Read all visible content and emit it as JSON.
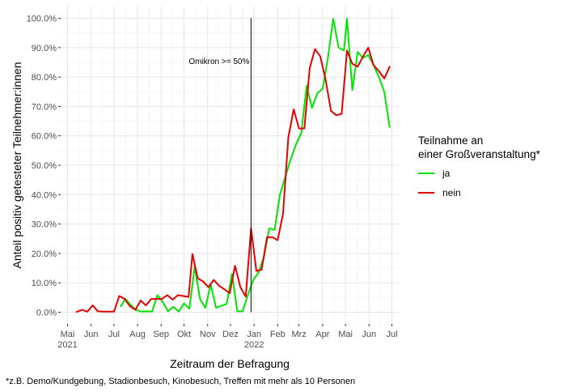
{
  "chart_data": {
    "type": "line",
    "title": "",
    "xlabel": "Zeitraum der Befragung",
    "ylabel": "Anteil positiv getesteter Teilnehmer:innen",
    "caption": "*z.B. Demo/Kundgebung, Stadionbesuch, Kinobesuch, Treffen mit mehr als 10 Personen",
    "x_tick_labels": [
      "Mai",
      "Jun",
      "Jul",
      "Aug",
      "Sep",
      "Okt",
      "Nov",
      "Dez",
      "Jan",
      "Feb",
      "Mrz",
      "Apr",
      "Mai",
      "Jun",
      "Jul"
    ],
    "x_tick_dates": [
      "2021-05-01",
      "2021-06-01",
      "2021-07-01",
      "2021-08-01",
      "2021-09-01",
      "2021-10-01",
      "2021-11-01",
      "2021-12-01",
      "2022-01-01",
      "2022-02-01",
      "2022-03-01",
      "2022-04-01",
      "2022-05-01",
      "2022-06-01",
      "2022-07-01"
    ],
    "x_year_labels": [
      {
        "date": "2021-05-01",
        "label": "2021"
      },
      {
        "date": "2022-01-01",
        "label": "2022"
      }
    ],
    "xlim": [
      "2021-04-22",
      "2022-07-10"
    ],
    "y_tick_labels": [
      "0.0%",
      "10.0%",
      "20.0%",
      "30.0%",
      "40.0%",
      "50.0%",
      "60.0%",
      "70.0%",
      "80.0%",
      "90.0%",
      "100.0%"
    ],
    "y_ticks": [
      0,
      10,
      20,
      30,
      40,
      50,
      60,
      70,
      80,
      90,
      100
    ],
    "ylim": [
      -4,
      104
    ],
    "y_unit": "%",
    "grid": true,
    "legend": {
      "title_line1": "Teilnahme an",
      "title_line2": "einer Großveranstaltung*",
      "placement": "right"
    },
    "annotation": {
      "date": "2021-12-28",
      "text": "Omikron >= 50%",
      "y": 84.5
    },
    "series": [
      {
        "name": "ja",
        "color": "#00e600",
        "points": [
          [
            "2021-07-10",
            2.0
          ],
          [
            "2021-07-16",
            4.5
          ],
          [
            "2021-07-23",
            2.5
          ],
          [
            "2021-07-30",
            0.8
          ],
          [
            "2021-08-06",
            0.2
          ],
          [
            "2021-08-13",
            0.3
          ],
          [
            "2021-08-20",
            0.2
          ],
          [
            "2021-08-27",
            5.8
          ],
          [
            "2021-09-03",
            3.5
          ],
          [
            "2021-09-10",
            0.3
          ],
          [
            "2021-09-17",
            1.8
          ],
          [
            "2021-09-24",
            0.2
          ],
          [
            "2021-10-01",
            3.0
          ],
          [
            "2021-10-08",
            1.2
          ],
          [
            "2021-10-15",
            15.5
          ],
          [
            "2021-10-22",
            4.5
          ],
          [
            "2021-10-29",
            1.5
          ],
          [
            "2021-11-05",
            9.5
          ],
          [
            "2021-11-12",
            1.5
          ],
          [
            "2021-11-19",
            2.2
          ],
          [
            "2021-11-26",
            2.8
          ],
          [
            "2021-12-03",
            13.0
          ],
          [
            "2021-12-10",
            0.3
          ],
          [
            "2021-12-17",
            0.3
          ],
          [
            "2021-12-24",
            6.0
          ],
          [
            "2021-12-31",
            11.0
          ],
          [
            "2022-01-07",
            13.5
          ],
          [
            "2022-01-14",
            19.0
          ],
          [
            "2022-01-21",
            28.5
          ],
          [
            "2022-01-28",
            28.0
          ],
          [
            "2022-02-04",
            40.0
          ],
          [
            "2022-02-11",
            46.0
          ],
          [
            "2022-02-18",
            52.0
          ],
          [
            "2022-02-25",
            57.0
          ],
          [
            "2022-03-04",
            61.0
          ],
          [
            "2022-03-11",
            77.0
          ],
          [
            "2022-03-18",
            69.5
          ],
          [
            "2022-03-25",
            74.5
          ],
          [
            "2022-04-01",
            76.0
          ],
          [
            "2022-04-08",
            86.5
          ],
          [
            "2022-04-15",
            99.8
          ],
          [
            "2022-04-22",
            90.0
          ],
          [
            "2022-04-29",
            89.0
          ],
          [
            "2022-05-03",
            99.8
          ],
          [
            "2022-05-10",
            75.5
          ],
          [
            "2022-05-17",
            88.5
          ],
          [
            "2022-05-24",
            86.5
          ],
          [
            "2022-05-31",
            87.5
          ],
          [
            "2022-06-07",
            84.0
          ],
          [
            "2022-06-14",
            80.0
          ],
          [
            "2022-06-21",
            75.0
          ],
          [
            "2022-06-28",
            63.0
          ]
        ]
      },
      {
        "name": "nein",
        "color": "#e60000",
        "points": [
          [
            "2021-05-13",
            0.1
          ],
          [
            "2021-05-20",
            0.8
          ],
          [
            "2021-05-27",
            0.2
          ],
          [
            "2021-06-03",
            2.3
          ],
          [
            "2021-06-10",
            0.3
          ],
          [
            "2021-06-17",
            0.2
          ],
          [
            "2021-06-24",
            0.2
          ],
          [
            "2021-07-01",
            0.2
          ],
          [
            "2021-07-08",
            5.5
          ],
          [
            "2021-07-15",
            4.5
          ],
          [
            "2021-07-22",
            2.0
          ],
          [
            "2021-07-29",
            0.8
          ],
          [
            "2021-08-05",
            4.0
          ],
          [
            "2021-08-12",
            2.3
          ],
          [
            "2021-08-19",
            4.5
          ],
          [
            "2021-08-26",
            4.5
          ],
          [
            "2021-09-02",
            4.5
          ],
          [
            "2021-09-09",
            5.8
          ],
          [
            "2021-09-16",
            4.3
          ],
          [
            "2021-09-23",
            5.8
          ],
          [
            "2021-09-30",
            5.5
          ],
          [
            "2021-10-07",
            5.2
          ],
          [
            "2021-10-12",
            19.8
          ],
          [
            "2021-10-19",
            11.5
          ],
          [
            "2021-10-26",
            10.5
          ],
          [
            "2021-11-02",
            8.5
          ],
          [
            "2021-11-09",
            11.0
          ],
          [
            "2021-11-16",
            9.0
          ],
          [
            "2021-11-23",
            7.8
          ],
          [
            "2021-11-30",
            6.5
          ],
          [
            "2021-12-07",
            15.8
          ],
          [
            "2021-12-14",
            8.5
          ],
          [
            "2021-12-21",
            5.3
          ],
          [
            "2021-12-28",
            28.5
          ],
          [
            "2022-01-04",
            14.0
          ],
          [
            "2022-01-11",
            14.5
          ],
          [
            "2022-01-18",
            25.5
          ],
          [
            "2022-01-25",
            25.5
          ],
          [
            "2022-02-01",
            24.5
          ],
          [
            "2022-02-08",
            33.5
          ],
          [
            "2022-02-15",
            59.5
          ],
          [
            "2022-02-22",
            69.0
          ],
          [
            "2022-03-01",
            62.5
          ],
          [
            "2022-03-08",
            62.5
          ],
          [
            "2022-03-15",
            83.0
          ],
          [
            "2022-03-22",
            89.5
          ],
          [
            "2022-03-29",
            87.0
          ],
          [
            "2022-04-05",
            79.0
          ],
          [
            "2022-04-12",
            68.5
          ],
          [
            "2022-04-19",
            67.0
          ],
          [
            "2022-04-26",
            67.5
          ],
          [
            "2022-05-03",
            89.0
          ],
          [
            "2022-05-10",
            84.5
          ],
          [
            "2022-05-17",
            83.5
          ],
          [
            "2022-05-24",
            87.0
          ],
          [
            "2022-05-31",
            90.0
          ],
          [
            "2022-06-07",
            84.0
          ],
          [
            "2022-06-14",
            82.0
          ],
          [
            "2022-06-21",
            79.5
          ],
          [
            "2022-06-28",
            83.5
          ]
        ]
      }
    ]
  }
}
